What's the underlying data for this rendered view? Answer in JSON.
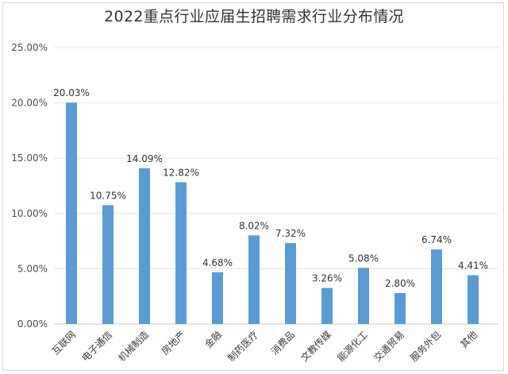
{
  "chart_data": {
    "type": "bar",
    "title": "2022重点行业应届生招聘需求行业分布情况",
    "xlabel": "",
    "ylabel": "",
    "categories": [
      "互联网",
      "电子通信",
      "机械制造",
      "房地产",
      "金融",
      "制药医疗",
      "消费品",
      "文教传媒",
      "能源化工",
      "交通贸易",
      "服务外包",
      "其他"
    ],
    "values": [
      20.03,
      10.75,
      14.09,
      12.82,
      4.68,
      8.02,
      7.32,
      3.26,
      5.08,
      2.8,
      6.74,
      4.41
    ],
    "value_labels": [
      "20.03%",
      "10.75%",
      "14.09%",
      "12.82%",
      "4.68%",
      "8.02%",
      "7.32%",
      "3.26%",
      "5.08%",
      "2.80%",
      "6.74%",
      "4.41%"
    ],
    "ylim": [
      0,
      25
    ],
    "yticks": [
      0,
      5,
      10,
      15,
      20,
      25
    ],
    "ytick_labels": [
      "0.00%",
      "5.00%",
      "10.00%",
      "15.00%",
      "20.00%",
      "25.00%"
    ],
    "grid": true,
    "legend": "none",
    "bar_color": "#5b9bd5"
  }
}
